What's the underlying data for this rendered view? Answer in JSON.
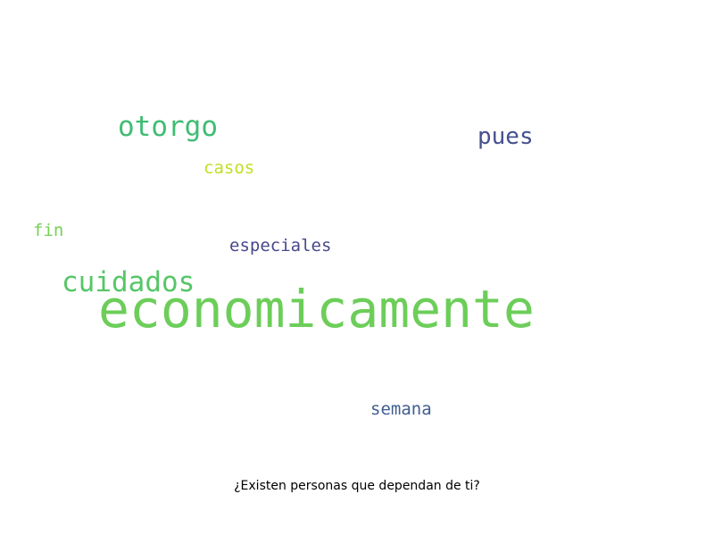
{
  "words": [
    {
      "text": "economicamente",
      "color": "#6cce59"
    },
    {
      "text": "cuidados",
      "color": "#56c667"
    },
    {
      "text": "otorgo",
      "color": "#3fbc73"
    },
    {
      "text": "pues",
      "color": "#46508d"
    },
    {
      "text": "casos",
      "color": "#c2df23"
    },
    {
      "text": "fin",
      "color": "#75d054"
    },
    {
      "text": "especiales",
      "color": "#48488a"
    },
    {
      "text": "semana",
      "color": "#3f5e8f"
    }
  ],
  "caption": "¿Existen personas que dependan de ti?"
}
